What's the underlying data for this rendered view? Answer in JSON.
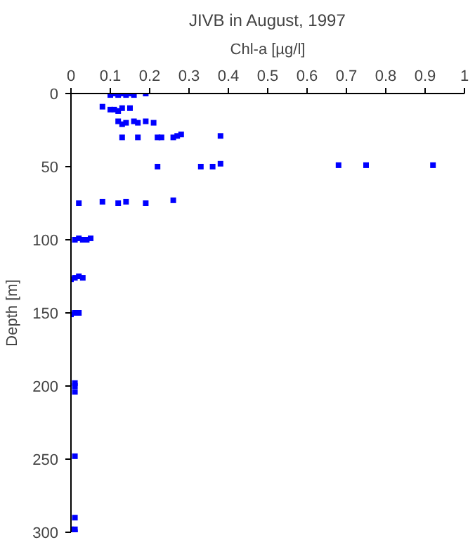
{
  "chart_data": {
    "type": "scatter",
    "title": "JIVB in August, 1997",
    "xlabel": "Chl-a [µg/l]",
    "ylabel": "Depth [m]",
    "x": [
      0.1,
      0.11,
      0.12,
      0.13,
      0.14,
      0.15,
      0.16,
      0.19,
      0.08,
      0.1,
      0.11,
      0.12,
      0.13,
      0.15,
      0.12,
      0.13,
      0.14,
      0.16,
      0.17,
      0.19,
      0.21,
      0.13,
      0.17,
      0.22,
      0.23,
      0.26,
      0.27,
      0.28,
      0.38,
      0.22,
      0.33,
      0.36,
      0.38,
      0.68,
      0.75,
      0.92,
      0.02,
      0.08,
      0.12,
      0.14,
      0.19,
      0.26,
      0.01,
      0.02,
      0.03,
      0.04,
      0.05,
      0.0,
      0.01,
      0.02,
      0.03,
      0.0,
      0.01,
      0.02,
      0.01,
      0.01,
      0.01,
      0.01,
      0.01,
      0.0,
      0.01,
      0.01
    ],
    "series": [
      {
        "color": "#0000ff",
        "values": [
          1,
          0,
          1,
          0,
          1,
          0,
          1,
          0,
          9,
          11,
          11,
          12,
          10,
          10,
          19,
          21,
          20,
          19,
          20,
          19,
          20,
          30,
          30,
          30,
          30,
          30,
          29,
          28,
          29,
          50,
          50,
          50,
          48,
          49,
          49,
          49,
          75,
          74,
          75,
          74,
          75,
          73,
          100,
          99,
          100,
          100,
          99,
          127,
          126,
          125,
          126,
          151,
          150,
          150,
          198,
          200,
          204,
          248,
          290,
          298,
          298,
          300
        ]
      }
    ],
    "xlim": [
      0,
      1
    ],
    "ylim": [
      300,
      0
    ],
    "xticks": [
      0,
      0.1,
      0.2,
      0.3,
      0.4,
      0.5,
      0.6,
      0.7,
      0.8,
      0.9,
      1
    ],
    "yticks": [
      0,
      50,
      100,
      150,
      200,
      250,
      300
    ],
    "marker": "square",
    "grid": false
  }
}
